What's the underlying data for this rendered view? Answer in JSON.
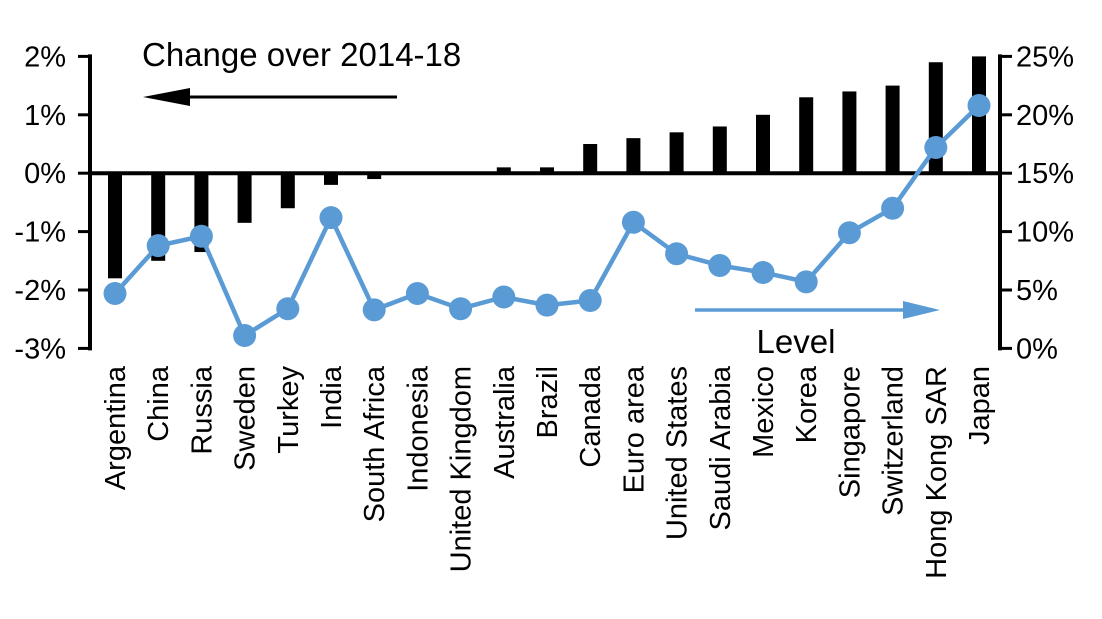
{
  "chart_data": {
    "type": "combo-bar-line",
    "title": "",
    "categories": [
      "Argentina",
      "China",
      "Russia",
      "Sweden",
      "Turkey",
      "India",
      "South Africa",
      "Indonesia",
      "United Kingdom",
      "Australia",
      "Brazil",
      "Canada",
      "Euro area",
      "United States",
      "Saudi Arabia",
      "Mexico",
      "Korea",
      "Singapore",
      "Switzerland",
      "Hong Kong SAR",
      "Japan"
    ],
    "series": [
      {
        "name": "Change over 2014-18",
        "type": "bar",
        "axis": "left",
        "color": "#000000",
        "values": [
          -1.8,
          -1.5,
          -1.35,
          -0.85,
          -0.6,
          -0.2,
          -0.1,
          0,
          0,
          0.1,
          0.1,
          0.5,
          0.6,
          0.7,
          0.8,
          1.0,
          1.3,
          1.4,
          1.5,
          1.9,
          2.0
        ]
      },
      {
        "name": "Level",
        "type": "line",
        "axis": "right",
        "color": "#5B9BD5",
        "values": [
          4.7,
          8.8,
          9.6,
          1.1,
          3.4,
          11.2,
          3.3,
          4.7,
          3.4,
          4.4,
          3.7,
          4.1,
          10.8,
          8.1,
          7.1,
          6.5,
          5.7,
          9.9,
          12.0,
          17.2,
          20.8
        ]
      }
    ],
    "left_axis": {
      "min": -3,
      "max": 2,
      "tick_step": 1,
      "tick_labels": [
        "2%",
        "1%",
        "0%",
        "-1%",
        "-2%",
        "-3%"
      ]
    },
    "right_axis": {
      "min": 0,
      "max": 25,
      "tick_step": 5,
      "tick_labels": [
        "25%",
        "20%",
        "15%",
        "10%",
        "5%",
        "0%"
      ]
    },
    "annotations": [
      {
        "text": "Change over 2014-18",
        "arrow_direction": "left",
        "color": "#000000"
      },
      {
        "text": "Level",
        "arrow_direction": "right",
        "color": "#5B9BD5"
      }
    ],
    "grid": false,
    "background": "#FFFFFF",
    "zero_line": true,
    "legend_position": "none"
  }
}
